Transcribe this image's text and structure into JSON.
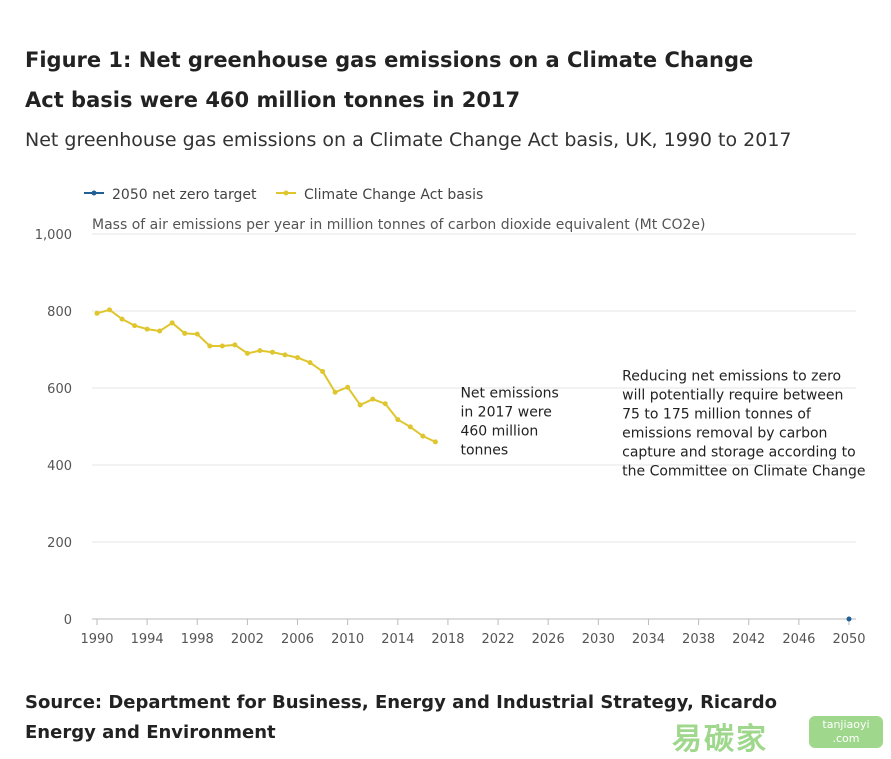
{
  "header": {
    "title": "Figure 1: Net greenhouse gas emissions on a Climate Change Act basis were 460 million tonnes in 2017",
    "subtitle": "Net greenhouse gas emissions on a Climate Change Act basis, UK, 1990 to 2017"
  },
  "footer": {
    "source": "Source: Department for Business, Energy and Industrial Strategy, Ricardo Energy and Environment"
  },
  "watermark": {
    "brand": "易碳家",
    "site_line1": "tanjiaoyi",
    "site_line2": ".com"
  },
  "chart_data": {
    "type": "line",
    "ylabel": "Mass of air emissions per year in million tonnes of carbon dioxide equivalent (Mt CO2e)",
    "xlabel": "",
    "ylim": [
      0,
      1000
    ],
    "xlim": [
      1990,
      2050
    ],
    "yticks": [
      "0",
      "200",
      "400",
      "600",
      "800",
      "1,000"
    ],
    "xticks": [
      "1990",
      "1994",
      "1998",
      "2002",
      "2006",
      "2010",
      "2014",
      "2018",
      "2022",
      "2026",
      "2030",
      "2034",
      "2038",
      "2042",
      "2046",
      "2050"
    ],
    "grid": "horizontal",
    "legend_position": "top-left",
    "series": [
      {
        "name": "2050 net zero target",
        "color": "#206095",
        "x": [
          2050
        ],
        "values": [
          0
        ]
      },
      {
        "name": "Climate Change Act basis",
        "color": "#dfc62e",
        "x": [
          1990,
          1991,
          1992,
          1993,
          1994,
          1995,
          1996,
          1997,
          1998,
          1999,
          2000,
          2001,
          2002,
          2003,
          2004,
          2005,
          2006,
          2007,
          2008,
          2009,
          2010,
          2011,
          2012,
          2013,
          2014,
          2015,
          2016,
          2017
        ],
        "values": [
          794,
          803,
          779,
          762,
          753,
          748,
          769,
          742,
          740,
          709,
          709,
          712,
          690,
          697,
          693,
          686,
          679,
          666,
          643,
          589,
          602,
          556,
          571,
          559,
          518,
          499,
          475,
          460
        ]
      }
    ],
    "annotations": [
      {
        "text_lines": [
          "Net emissions",
          "in 2017 were",
          "460 million",
          "tonnes"
        ],
        "x": 2019.0,
        "y": 575
      },
      {
        "text_lines": [
          "Reducing net emissions to zero",
          "will potentially require between",
          "75 to 175 million tonnes of",
          "emissions removal by carbon",
          "capture and storage according to",
          "the Committee on Climate Change"
        ],
        "x": 2031.9,
        "y": 620
      }
    ]
  }
}
